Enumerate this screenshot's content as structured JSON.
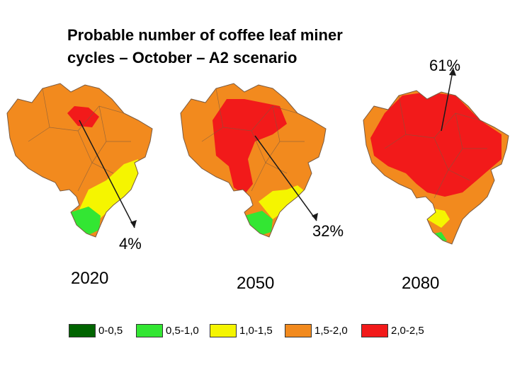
{
  "title": {
    "line1": "Probable number of coffee leaf miner",
    "line2": "cycles – October – A2 scenario"
  },
  "maps": [
    {
      "year": "2020",
      "percent": "4%"
    },
    {
      "year": "2050",
      "percent": "32%"
    },
    {
      "year": "2080",
      "percent": "61%"
    }
  ],
  "legend": [
    {
      "label": "0-0,5",
      "color": "#006400"
    },
    {
      "label": "0,5-1,0",
      "color": "#33e633"
    },
    {
      "label": "1,0-1,5",
      "color": "#f5f500"
    },
    {
      "label": "1,5-2,0",
      "color": "#f28a1e"
    },
    {
      "label": "2,0-2,5",
      "color": "#f21a1a"
    }
  ],
  "region_colors": {
    "north": "#f28a1e",
    "southeast": "#f5f500",
    "south": "#33e633",
    "hot": "#f21a1a",
    "boundary": "#7a5a40"
  }
}
